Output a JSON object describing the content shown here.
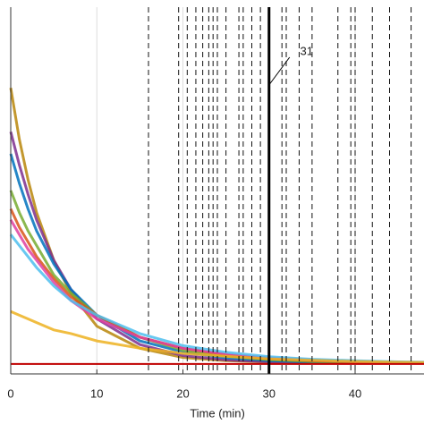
{
  "chart_data": {
    "type": "line",
    "xlabel": "Time (min)",
    "x": [
      0,
      1,
      2,
      3,
      5,
      7,
      10,
      15,
      20,
      25,
      30,
      35,
      40,
      45,
      48
    ],
    "xlim": [
      0,
      48
    ],
    "xticks": [
      0,
      10,
      20,
      30,
      40
    ],
    "ylim": [
      0,
      1
    ],
    "grid": true,
    "series": [
      {
        "color": "#b8860b",
        "values": [
          0.78,
          0.64,
          0.53,
          0.44,
          0.31,
          0.22,
          0.13,
          0.07,
          0.045,
          0.036,
          0.032,
          0.03,
          0.03,
          0.03,
          0.03
        ]
      },
      {
        "color": "#7e2f8e",
        "values": [
          0.66,
          0.57,
          0.49,
          0.42,
          0.31,
          0.23,
          0.15,
          0.08,
          0.05,
          0.038,
          0.033,
          0.031,
          0.03,
          0.03,
          0.03
        ]
      },
      {
        "color": "#0072bd",
        "values": [
          0.6,
          0.52,
          0.45,
          0.39,
          0.3,
          0.23,
          0.16,
          0.09,
          0.06,
          0.044,
          0.036,
          0.032,
          0.03,
          0.03,
          0.03
        ]
      },
      {
        "color": "#77ac30",
        "values": [
          0.5,
          0.44,
          0.39,
          0.35,
          0.27,
          0.22,
          0.16,
          0.1,
          0.065,
          0.048,
          0.039,
          0.034,
          0.032,
          0.03,
          0.03
        ]
      },
      {
        "color": "#d95319",
        "values": [
          0.45,
          0.4,
          0.36,
          0.32,
          0.26,
          0.21,
          0.16,
          0.1,
          0.07,
          0.052,
          0.042,
          0.036,
          0.033,
          0.031,
          0.03
        ]
      },
      {
        "color": "#e040a0",
        "values": [
          0.42,
          0.38,
          0.34,
          0.31,
          0.25,
          0.2,
          0.15,
          0.1,
          0.07,
          0.054,
          0.044,
          0.038,
          0.034,
          0.032,
          0.031
        ]
      },
      {
        "color": "#4dbeee",
        "values": [
          0.38,
          0.35,
          0.32,
          0.29,
          0.24,
          0.2,
          0.16,
          0.11,
          0.077,
          0.059,
          0.047,
          0.04,
          0.036,
          0.033,
          0.032
        ]
      },
      {
        "color": "#edb120",
        "values": [
          0.17,
          0.16,
          0.15,
          0.14,
          0.12,
          0.11,
          0.09,
          0.07,
          0.056,
          0.048,
          0.041,
          0.037,
          0.034,
          0.032,
          0.031
        ]
      }
    ],
    "hline": {
      "value": 0.027,
      "color": "#c00000"
    },
    "dashed_lines": [
      16,
      19.5,
      20.5,
      21.5,
      22.3,
      23,
      23.5,
      24,
      25,
      26.5,
      27,
      28,
      29,
      31.5,
      32,
      33.5,
      35,
      38,
      39.5,
      40,
      42,
      44,
      46.5
    ],
    "solid_line": 30,
    "annotation": "31"
  }
}
